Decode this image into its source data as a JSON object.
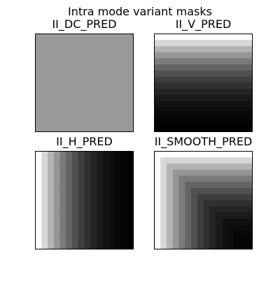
{
  "figure": {
    "title": "Intra mode variant masks"
  },
  "chart_data": [
    {
      "type": "heatmap",
      "title": "II_DC_PRED",
      "pattern": "uniform",
      "grid": [
        16,
        16
      ],
      "colormap": "gray",
      "levels": [
        153
      ]
    },
    {
      "type": "heatmap",
      "title": "II_V_PRED",
      "pattern": "vertical-gradient",
      "grid": [
        16,
        16
      ],
      "colormap": "gray",
      "levels": [
        255,
        215,
        180,
        150,
        123,
        100,
        80,
        62,
        48,
        36,
        26,
        18,
        12,
        7,
        4,
        1
      ]
    },
    {
      "type": "heatmap",
      "title": "II_H_PRED",
      "pattern": "horizontal-gradient",
      "grid": [
        16,
        16
      ],
      "colormap": "gray",
      "levels": [
        255,
        215,
        180,
        150,
        123,
        100,
        80,
        62,
        48,
        36,
        26,
        18,
        12,
        7,
        4,
        1
      ]
    },
    {
      "type": "heatmap",
      "title": "II_SMOOTH_PRED",
      "pattern": "corner-gradient",
      "grid": [
        16,
        16
      ],
      "colormap": "gray",
      "levels": [
        255,
        215,
        180,
        150,
        123,
        100,
        80,
        62,
        48,
        36,
        26,
        18,
        12,
        7,
        4,
        1
      ]
    }
  ]
}
